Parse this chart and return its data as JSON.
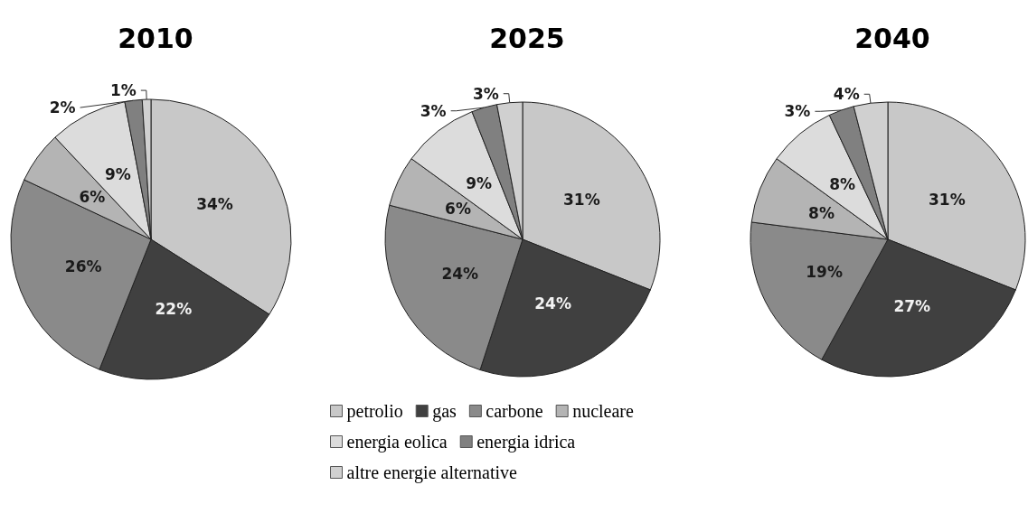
{
  "chart_data": [
    {
      "type": "pie",
      "title": "2010",
      "values": [
        34,
        22,
        26,
        6,
        9,
        2,
        1
      ],
      "colors": [
        "#c8c8c8",
        "#404040",
        "#8a8a8a",
        "#b4b4b4",
        "#dcdcdc",
        "#808080",
        "#d0d0d0"
      ],
      "value_labels": [
        "34%",
        "22%",
        "26%",
        "6%",
        "9%",
        "2%",
        "1%"
      ]
    },
    {
      "type": "pie",
      "title": "2025",
      "categories": [
        "petrolio",
        "gas",
        "carbone",
        "nucleare",
        "energia eolica",
        "energia idrica",
        "altre energie alternative"
      ],
      "values": [
        31,
        24,
        24,
        6,
        9,
        3,
        3
      ],
      "colors": [
        "#c8c8c8",
        "#404040",
        "#8a8a8a",
        "#b4b4b4",
        "#dcdcdc",
        "#808080",
        "#d0d0d0"
      ],
      "value_labels": [
        "31%",
        "24%",
        "24%",
        "6%",
        "9%",
        "3%",
        "3%"
      ],
      "legend": "bottom"
    },
    {
      "type": "pie",
      "title": "2040",
      "values": [
        31,
        27,
        19,
        8,
        8,
        3,
        4
      ],
      "colors": [
        "#c8c8c8",
        "#404040",
        "#8a8a8a",
        "#b4b4b4",
        "#dcdcdc",
        "#808080",
        "#d0d0d0"
      ],
      "value_labels": [
        "31%",
        "27%",
        "19%",
        "8%",
        "8%",
        "3%",
        "4%"
      ]
    }
  ]
}
